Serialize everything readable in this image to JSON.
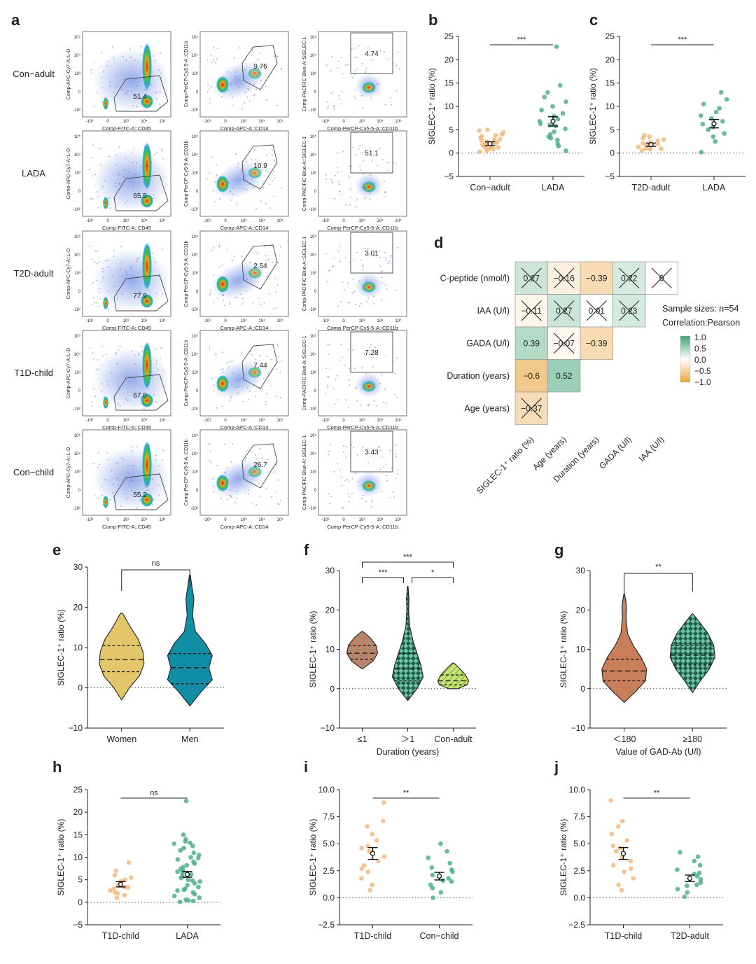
{
  "figure": {
    "panel_letters": [
      "a",
      "b",
      "c",
      "d",
      "e",
      "f",
      "g",
      "h",
      "i",
      "j"
    ]
  },
  "colors": {
    "orange": "#f5b97f",
    "green": "#4daf8c",
    "violet_tan": "#e3c56a",
    "violet_teal": "#118ea6",
    "violet_brown": "#c9805a",
    "violet_dkgreen": "#2f7f5b",
    "violet_lime": "#b5d84a",
    "neg": "#e8a33d",
    "pos": "#3ea372"
  },
  "flow": {
    "row_labels": [
      "Con−adult",
      "LADA",
      "T2D-adult",
      "T1D-child",
      "Con−child"
    ],
    "col1": {
      "ylabel": "Comp-APC-Cy7-A::L-D",
      "xlabel": "Comp-FITC-A::CD45",
      "gate_values": [
        "51.4",
        "65.5",
        "77.9",
        "67.0",
        "55.2"
      ]
    },
    "col2": {
      "ylabel": "Comp-PerCP-Cy5-5-A::CD11b",
      "xlabel": "Comp-APC-A::CD14",
      "gate_values": [
        "9.76",
        "10.9",
        "2.54",
        "7.44",
        "26.7"
      ]
    },
    "col3": {
      "ylabel": "Comp-PACIFIC Blue-A::SIGLEC-1",
      "xlabel": "Comp-PerCP-Cy5-5-A::CD11b",
      "gate_values": [
        "4.74",
        "51.1",
        "3.01",
        "7.28",
        "3.43"
      ]
    },
    "x_ticks": [
      "-10³",
      "0",
      "10³",
      "10⁴",
      "10⁵"
    ],
    "y_ticks": [
      "10⁵",
      "10⁴",
      "10³",
      "0",
      "-10²"
    ]
  },
  "chart_data": [
    {
      "panel": "b",
      "type": "scatter",
      "ylabel": "SIGLEC-1⁺ ratio (%)",
      "ylim": [
        -5,
        25
      ],
      "yticks": [
        -5,
        0,
        5,
        10,
        15,
        20,
        25
      ],
      "categories": [
        "Con−adult",
        "LADA"
      ],
      "significance": "***",
      "groups": [
        {
          "name": "Con−adult",
          "color": "orange",
          "mean": 2.0,
          "sem": 0.4,
          "points": [
            0.3,
            0.8,
            1.0,
            1.2,
            1.4,
            1.6,
            1.8,
            2.0,
            2.1,
            2.3,
            2.5,
            2.7,
            3.0,
            3.3,
            3.6,
            4.0,
            4.4,
            4.8,
            5.0,
            0.5,
            1.1,
            2.9,
            3.8
          ]
        },
        {
          "name": "LADA",
          "color": "green",
          "mean": 6.8,
          "sem": 1.0,
          "points": [
            0.5,
            1.5,
            2.0,
            2.8,
            3.5,
            4.0,
            4.6,
            5.2,
            5.8,
            6.3,
            6.8,
            7.3,
            7.9,
            8.5,
            9.2,
            10.0,
            11.0,
            12.0,
            13.0,
            14.5,
            3.2,
            6.0,
            22.8
          ]
        }
      ]
    },
    {
      "panel": "c",
      "type": "scatter",
      "ylabel": "SIGLEC-1⁺ ratio (%)",
      "ylim": [
        -5,
        25
      ],
      "yticks": [
        -5,
        0,
        5,
        10,
        15,
        20,
        25
      ],
      "categories": [
        "T2D-adult",
        "LADA"
      ],
      "significance": "***",
      "groups": [
        {
          "name": "T2D-adult",
          "color": "orange",
          "mean": 1.8,
          "sem": 0.35,
          "points": [
            0.5,
            0.8,
            1.0,
            1.3,
            1.5,
            1.7,
            1.9,
            2.1,
            2.3,
            2.6,
            2.9,
            3.2,
            3.5,
            3.8,
            0.9
          ]
        },
        {
          "name": "LADA",
          "color": "green",
          "mean": 6.3,
          "sem": 0.9,
          "points": [
            0.2,
            2.5,
            3.5,
            4.2,
            5.0,
            5.6,
            6.2,
            6.8,
            7.4,
            8.0,
            8.8,
            9.6,
            10.5,
            11.5,
            13.0
          ]
        }
      ]
    },
    {
      "panel": "d",
      "type": "heatmap",
      "title": "",
      "method": "Pearson",
      "sample_size": "54",
      "rows": [
        "C-peptide (nmol/l)",
        "IAA (U/l)",
        "GADA (U/l)",
        "Duration (years)",
        "Age (years)"
      ],
      "cols": [
        "SIGLEC-1⁺ ratio (%)",
        "Age (years)",
        "Duration (years)",
        "GADA (U/l)",
        "IAA (U/l)"
      ],
      "cells": [
        {
          "r": 0,
          "c": 0,
          "v": 0.27,
          "label": "0.27",
          "crossed": true
        },
        {
          "r": 0,
          "c": 1,
          "v": -0.16,
          "label": "−0.16",
          "crossed": true
        },
        {
          "r": 0,
          "c": 2,
          "v": -0.39,
          "label": "−0.39",
          "crossed": false
        },
        {
          "r": 0,
          "c": 3,
          "v": 0.22,
          "label": "0.22",
          "crossed": true
        },
        {
          "r": 0,
          "c": 4,
          "v": 0,
          "label": "0",
          "crossed": true
        },
        {
          "r": 1,
          "c": 0,
          "v": -0.11,
          "label": "−0.11",
          "crossed": true
        },
        {
          "r": 1,
          "c": 1,
          "v": 0.27,
          "label": "0.27",
          "crossed": true
        },
        {
          "r": 1,
          "c": 2,
          "v": 0.01,
          "label": "0.01",
          "crossed": true
        },
        {
          "r": 1,
          "c": 3,
          "v": 0.23,
          "label": "0.23",
          "crossed": true
        },
        {
          "r": 2,
          "c": 0,
          "v": 0.39,
          "label": "0.39",
          "crossed": false
        },
        {
          "r": 2,
          "c": 1,
          "v": -0.07,
          "label": "−0.07",
          "crossed": true
        },
        {
          "r": 2,
          "c": 2,
          "v": -0.39,
          "label": "−0.39",
          "crossed": false
        },
        {
          "r": 3,
          "c": 0,
          "v": -0.6,
          "label": "−0.6",
          "crossed": false
        },
        {
          "r": 3,
          "c": 1,
          "v": 0.52,
          "label": "0.52",
          "crossed": false
        },
        {
          "r": 4,
          "c": 0,
          "v": -0.37,
          "label": "−0.37",
          "crossed": true
        }
      ],
      "legend_ticks": [
        "1.0",
        "0.5",
        "0.0",
        "−0.5",
        "−1.0"
      ]
    },
    {
      "panel": "e",
      "type": "violin",
      "ylabel": "SIGLEC-1⁺ ratio (%)",
      "ylim": [
        -10,
        30
      ],
      "yticks": [
        -10,
        0,
        10,
        20,
        30
      ],
      "categories": [
        "Women",
        "Men"
      ],
      "significance": "ns",
      "groups": [
        {
          "name": "Women",
          "fill": "violet_tan",
          "min": -3,
          "max": 18.5,
          "q1": 4,
          "median": 7,
          "q3": 10.5,
          "profile": [
            [
              -3,
              0
            ],
            [
              0,
              0.35
            ],
            [
              3,
              0.8
            ],
            [
              6,
              1.0
            ],
            [
              9,
              0.95
            ],
            [
              12,
              0.75
            ],
            [
              15,
              0.4
            ],
            [
              18.5,
              0.05
            ]
          ]
        },
        {
          "name": "Men",
          "fill": "violet_teal",
          "min": -4.5,
          "max": 28,
          "q1": 1,
          "median": 5,
          "q3": 8.5,
          "profile": [
            [
              -4.5,
              0
            ],
            [
              -1,
              0.5
            ],
            [
              2,
              1.0
            ],
            [
              5,
              0.85
            ],
            [
              8,
              1.0
            ],
            [
              11,
              0.7
            ],
            [
              14,
              0.25
            ],
            [
              18,
              0.12
            ],
            [
              22,
              0.18
            ],
            [
              25,
              0.1
            ],
            [
              28,
              0.02
            ]
          ]
        }
      ]
    },
    {
      "panel": "f",
      "type": "violin",
      "ylabel": "SIGLEC-1⁺ ratio (%)",
      "xlabel": "Duration (years)",
      "ylim": [
        -10,
        30
      ],
      "yticks": [
        -10,
        0,
        10,
        20,
        30
      ],
      "categories": [
        "≤1",
        "＞1",
        "Con-adult"
      ],
      "brackets": [
        {
          "from": 0,
          "to": 2,
          "label": "***",
          "level": 2
        },
        {
          "from": 0,
          "to": 1,
          "label": "***",
          "level": 1
        },
        {
          "from": 1,
          "to": 2,
          "label": "*",
          "level": 1
        }
      ],
      "groups": [
        {
          "name": "≤1",
          "fill": "violet_brown",
          "pattern": "dots",
          "min": 5,
          "max": 14.5,
          "q1": 7.5,
          "median": 9,
          "q3": 11,
          "profile": [
            [
              5,
              0
            ],
            [
              7,
              0.7
            ],
            [
              9,
              1.0
            ],
            [
              11,
              0.9
            ],
            [
              13,
              0.5
            ],
            [
              14.5,
              0.05
            ]
          ]
        },
        {
          "name": "＞1",
          "fill": "violet_dkgreen",
          "pattern": "checks",
          "min": -3,
          "max": 26,
          "q1": 2,
          "median": 5,
          "q3": 9,
          "profile": [
            [
              -3,
              0
            ],
            [
              0,
              0.6
            ],
            [
              3,
              1.0
            ],
            [
              6,
              0.85
            ],
            [
              9,
              0.6
            ],
            [
              12,
              0.35
            ],
            [
              16,
              0.12
            ],
            [
              20,
              0.06
            ],
            [
              23,
              0.08
            ],
            [
              26,
              0.02
            ]
          ]
        },
        {
          "name": "Con-adult",
          "fill": "violet_lime",
          "pattern": "lines",
          "min": 0,
          "max": 6.5,
          "q1": 1,
          "median": 2,
          "q3": 3.5,
          "profile": [
            [
              0,
              0.3
            ],
            [
              1,
              0.9
            ],
            [
              2,
              1.0
            ],
            [
              3.5,
              0.8
            ],
            [
              5,
              0.45
            ],
            [
              6.5,
              0.05
            ]
          ]
        }
      ]
    },
    {
      "panel": "g",
      "type": "violin",
      "ylabel": "SIGLEC-1⁺ ratio (%)",
      "xlabel": "Value of GAD-Ab (U/l)",
      "ylim": [
        -10,
        30
      ],
      "yticks": [
        -10,
        0,
        10,
        20,
        30
      ],
      "categories": [
        "＜180",
        "≥180"
      ],
      "significance": "**",
      "groups": [
        {
          "name": "＜180",
          "fill": "violet_brown",
          "min": -3.5,
          "max": 24,
          "q1": 2,
          "median": 4.5,
          "q3": 7.5,
          "profile": [
            [
              -3.5,
              0
            ],
            [
              -0.5,
              0.55
            ],
            [
              2,
              0.95
            ],
            [
              5,
              1.0
            ],
            [
              8,
              0.75
            ],
            [
              11,
              0.4
            ],
            [
              14,
              0.15
            ],
            [
              18,
              0.08
            ],
            [
              21,
              0.1
            ],
            [
              24,
              0.02
            ]
          ]
        },
        {
          "name": "≥180",
          "fill": "violet_dkgreen",
          "pattern": "checks",
          "min": -1,
          "max": 19,
          "q1": 6,
          "median": 8.5,
          "q3": 11,
          "profile": [
            [
              -1,
              0
            ],
            [
              2,
              0.35
            ],
            [
              5,
              0.75
            ],
            [
              8,
              1.0
            ],
            [
              11,
              0.95
            ],
            [
              14,
              0.7
            ],
            [
              17,
              0.3
            ],
            [
              19,
              0.02
            ]
          ]
        }
      ]
    },
    {
      "panel": "h",
      "type": "scatter",
      "ylabel": "SIGLEC-1⁺ ratio (%)",
      "ylim": [
        -5,
        25
      ],
      "yticks": [
        -5,
        0,
        5,
        10,
        15,
        20,
        25
      ],
      "categories": [
        "T1D-child",
        "LADA"
      ],
      "significance": "ns",
      "groups": [
        {
          "name": "T1D-child",
          "color": "orange",
          "mean": 4.0,
          "sem": 0.6,
          "points": [
            1.0,
            1.6,
            2.2,
            2.6,
            3.0,
            3.4,
            3.8,
            4.2,
            4.6,
            5.0,
            5.5,
            6.0,
            7.0,
            8.8,
            2.0,
            3.3
          ]
        },
        {
          "name": "LADA",
          "color": "green",
          "mean": 6.2,
          "sem": 0.65,
          "points": [
            0.1,
            0.3,
            0.6,
            1.0,
            1.4,
            1.8,
            2.2,
            2.6,
            3.0,
            3.4,
            3.8,
            4.2,
            4.6,
            5.0,
            5.4,
            5.8,
            6.2,
            6.6,
            7.0,
            7.4,
            7.8,
            8.2,
            8.6,
            9.0,
            9.5,
            10.0,
            10.5,
            11.0,
            11.5,
            12.0,
            12.5,
            13.0,
            13.5,
            14.0,
            15.0,
            0.4,
            2.8,
            4.8,
            6.8,
            9.8,
            22.5,
            13.2
          ]
        }
      ]
    },
    {
      "panel": "i",
      "type": "scatter",
      "ylabel": "SIGLEC-1⁺ ratio (%)",
      "ylim": [
        -2.5,
        10
      ],
      "yticks": [
        -2.5,
        0.0,
        2.5,
        5.0,
        7.5,
        10.0
      ],
      "categories": [
        "T1D-child",
        "Con−child"
      ],
      "significance": "**",
      "groups": [
        {
          "name": "T1D-child",
          "color": "orange",
          "mean": 4.1,
          "sem": 0.55,
          "points": [
            0.7,
            1.2,
            1.8,
            2.4,
            3.0,
            3.4,
            3.8,
            4.3,
            4.8,
            5.3,
            5.9,
            6.6,
            7.1,
            8.8,
            2.7,
            4.6
          ]
        },
        {
          "name": "Con−child",
          "color": "green",
          "mean": 2.0,
          "sem": 0.35,
          "points": [
            0.0,
            0.5,
            0.9,
            1.2,
            1.5,
            1.8,
            2.1,
            2.4,
            2.8,
            3.2,
            3.7,
            4.3,
            5.0,
            1.6,
            2.6
          ]
        }
      ]
    },
    {
      "panel": "j",
      "type": "scatter",
      "ylabel": "SIGLEC-1⁺ ratio (%)",
      "ylim": [
        -2.5,
        10
      ],
      "yticks": [
        -2.5,
        0.0,
        2.5,
        5.0,
        7.5,
        10.0
      ],
      "categories": [
        "T1D-child",
        "T2D-adult"
      ],
      "significance": "**",
      "groups": [
        {
          "name": "T1D-child",
          "color": "orange",
          "mean": 4.1,
          "sem": 0.55,
          "points": [
            0.7,
            1.2,
            1.8,
            2.4,
            3.0,
            3.4,
            3.8,
            4.3,
            4.8,
            5.3,
            5.9,
            6.6,
            7.1,
            9.0,
            2.7,
            4.6
          ]
        },
        {
          "name": "T2D-adult",
          "color": "green",
          "mean": 1.8,
          "sem": 0.3,
          "points": [
            0.1,
            0.5,
            0.8,
            1.1,
            1.4,
            1.7,
            2.0,
            2.3,
            2.6,
            3.0,
            3.4,
            3.8,
            4.2,
            1.2,
            2.2
          ]
        }
      ]
    }
  ]
}
